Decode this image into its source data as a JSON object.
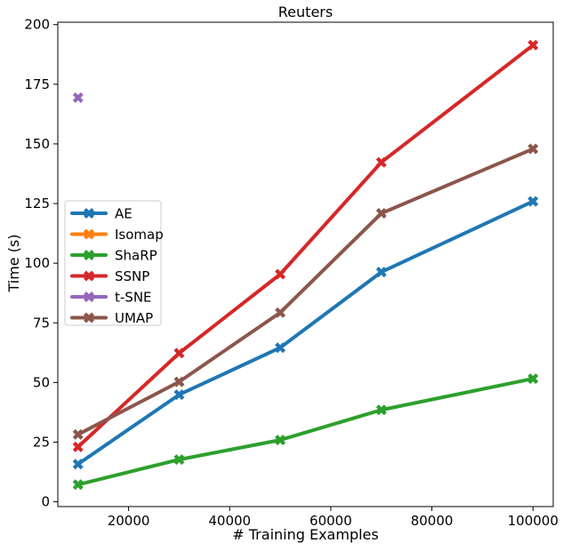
{
  "chart_data": {
    "type": "line",
    "title": "Reuters",
    "xlabel": "# Training Examples",
    "ylabel": "Time (s)",
    "xlim": [
      6000,
      104000
    ],
    "ylim": [
      -2,
      201
    ],
    "xticks": [
      20000,
      40000,
      60000,
      80000,
      100000
    ],
    "xtick_labels": [
      "20000",
      "40000",
      "60000",
      "80000",
      "100000"
    ],
    "yticks": [
      0,
      25,
      50,
      75,
      100,
      125,
      150,
      175,
      200
    ],
    "ytick_labels": [
      "0",
      "25",
      "50",
      "75",
      "100",
      "125",
      "150",
      "175",
      "200"
    ],
    "grid": false,
    "legend_position": "center-left",
    "marker": "x-filled",
    "series": [
      {
        "name": "AE",
        "color": "#1f77b4",
        "x": [
          10000,
          30000,
          50000,
          70000,
          100000
        ],
        "y": [
          15.8,
          44.9,
          64.6,
          96.3,
          125.9
        ]
      },
      {
        "name": "Isomap",
        "color": "#ff7f0e",
        "x": [],
        "y": []
      },
      {
        "name": "ShaRP",
        "color": "#2ca02c",
        "x": [
          10000,
          30000,
          50000,
          70000,
          100000
        ],
        "y": [
          7.2,
          17.7,
          25.9,
          38.5,
          51.6
        ]
      },
      {
        "name": "SSNP",
        "color": "#d62728",
        "x": [
          10000,
          30000,
          50000,
          70000,
          100000
        ],
        "y": [
          23.0,
          62.3,
          95.4,
          142.3,
          191.4
        ]
      },
      {
        "name": "t-SNE",
        "color": "#9467bd",
        "x": [
          10000
        ],
        "y": [
          169.4
        ]
      },
      {
        "name": "UMAP",
        "color": "#8c564b",
        "x": [
          10000,
          30000,
          50000,
          70000,
          100000
        ],
        "y": [
          28.2,
          50.3,
          79.3,
          120.9,
          147.9
        ]
      }
    ]
  }
}
